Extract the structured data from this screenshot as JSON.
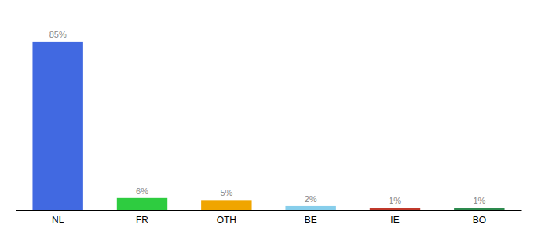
{
  "chart_data": {
    "type": "bar",
    "categories": [
      "NL",
      "FR",
      "OTH",
      "BE",
      "IE",
      "BO"
    ],
    "values": [
      85,
      6,
      5,
      2,
      1,
      1
    ],
    "value_labels": [
      "85%",
      "6%",
      "5%",
      "2%",
      "1%",
      "1%"
    ],
    "colors": [
      "#4169e1",
      "#2ecc40",
      "#f0a500",
      "#87ceeb",
      "#c0392b",
      "#2d8a4e"
    ],
    "ylim": [
      0,
      98
    ],
    "data_labels": true,
    "tick_labels": "x",
    "grid": false
  }
}
